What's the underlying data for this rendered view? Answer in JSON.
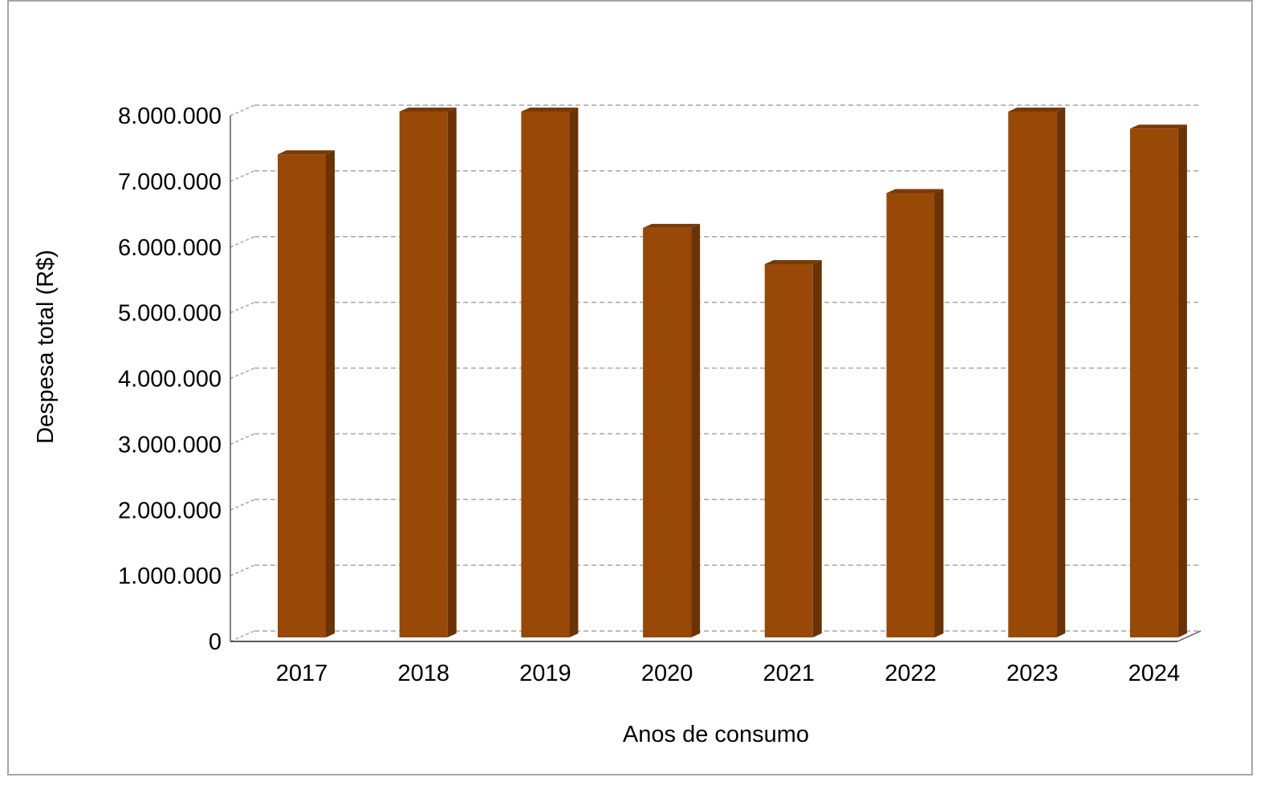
{
  "chart_data": {
    "type": "bar",
    "title": "",
    "xlabel": "Anos de consumo",
    "ylabel": "Despesa total (R$)",
    "categories": [
      "2017",
      "2018",
      "2019",
      "2020",
      "2021",
      "2022",
      "2023",
      "2024"
    ],
    "values": [
      7350000,
      8000000,
      8000000,
      6230000,
      5680000,
      6760000,
      8000000,
      7740000
    ],
    "y_ticks": [
      "0",
      "1.000.000",
      "2.000.000",
      "3.000.000",
      "4.000.000",
      "5.000.000",
      "6.000.000",
      "7.000.000",
      "8.000.000"
    ],
    "ylim": [
      0,
      8000000
    ],
    "grid": true,
    "grid_style": "dashed",
    "legend": "none",
    "style": "3d-column",
    "colors": {
      "bar_front": "#984807",
      "bar_side": "#6a3304",
      "bar_top": "#7a3a05",
      "grid": "#a6a6a6",
      "axis": "#595959",
      "frame": "#a6a6a6"
    }
  }
}
